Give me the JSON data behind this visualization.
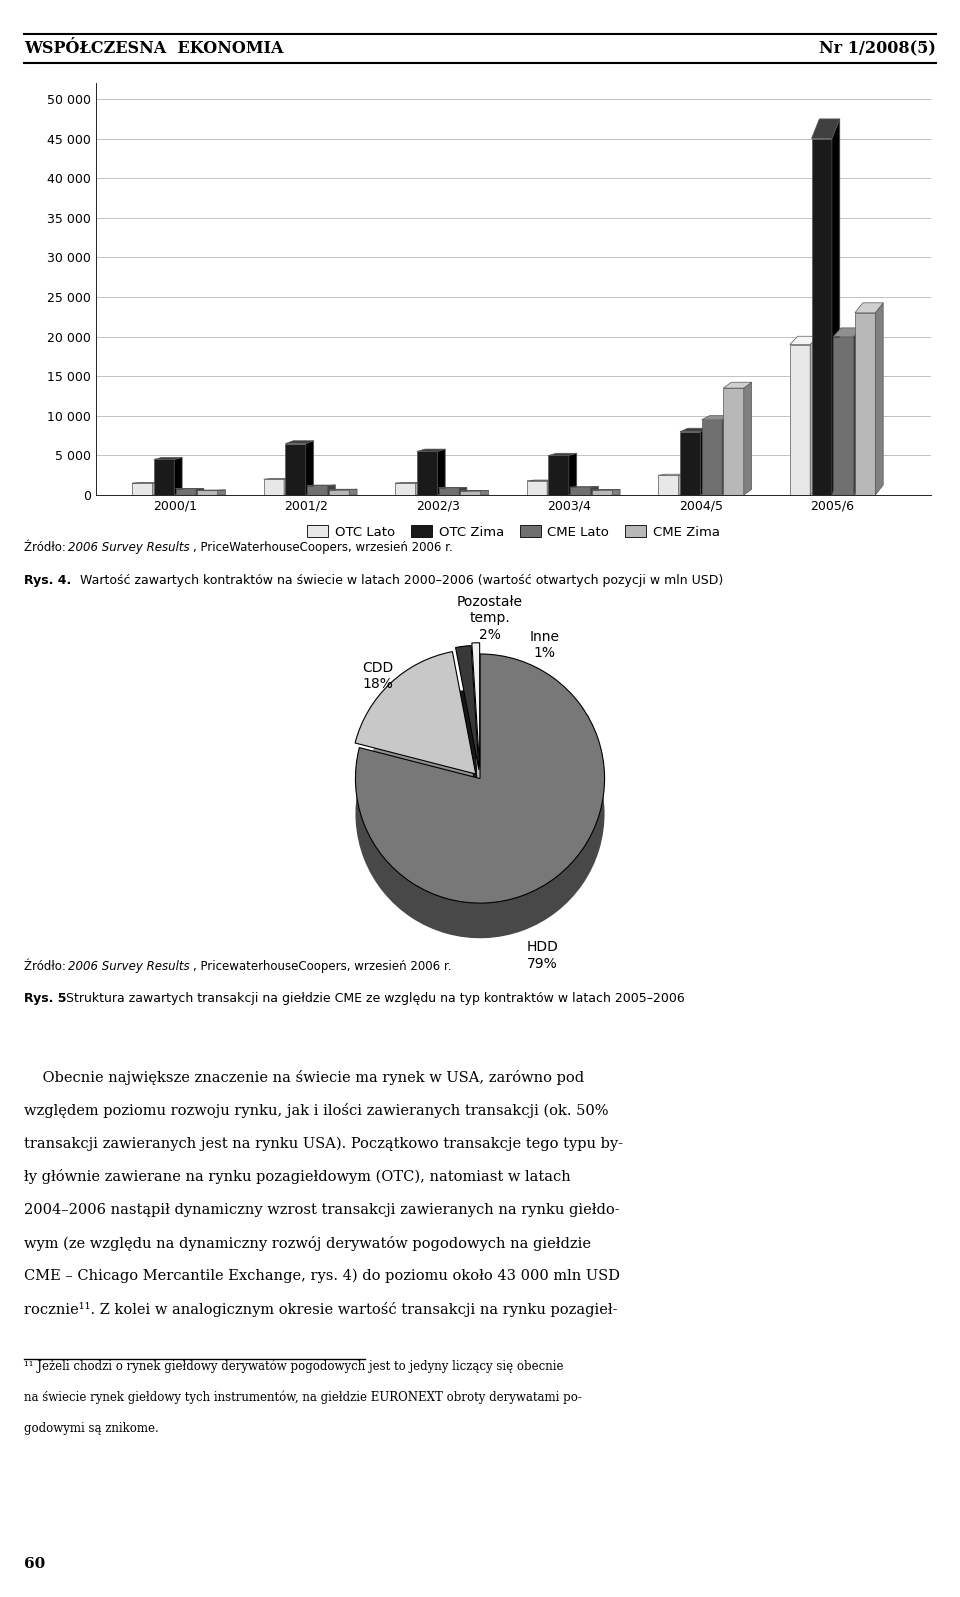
{
  "header_left": "WSPÓŁCZESNA  EKONOMIA",
  "header_right": "Nr 1/2008(5)",
  "bar_years": [
    "2000/1",
    "2001/2",
    "2002/3",
    "2003/4",
    "2004/5",
    "2005/6"
  ],
  "bar_series_names": [
    "OTC Lato",
    "OTC Zima",
    "CME Lato",
    "CME Zima"
  ],
  "bar_values": [
    [
      1500,
      4500,
      800,
      600
    ],
    [
      2000,
      6500,
      1200,
      700
    ],
    [
      1500,
      5500,
      900,
      550
    ],
    [
      1800,
      5000,
      1000,
      650
    ],
    [
      2500,
      8000,
      9500,
      13500
    ],
    [
      19000,
      45000,
      20000,
      23000
    ]
  ],
  "bar_front_colors": [
    "#e8e8e8",
    "#1a1a1a",
    "#707070",
    "#b8b8b8"
  ],
  "bar_side_colors": [
    "#b0b0b0",
    "#000000",
    "#404040",
    "#808080"
  ],
  "bar_top_colors": [
    "#f5f5f5",
    "#404040",
    "#909090",
    "#d0d0d0"
  ],
  "bar_ylim": [
    0,
    52000
  ],
  "bar_yticks": [
    0,
    5000,
    10000,
    15000,
    20000,
    25000,
    30000,
    35000,
    40000,
    45000,
    50000
  ],
  "bar_ytick_labels": [
    "0",
    "5 000",
    "10 000",
    "15 000",
    "20 000",
    "25 000",
    "30 000",
    "35 000",
    "40 000",
    "45 000",
    "50 000"
  ],
  "legend_labels": [
    "OTC Lato",
    "OTC Zima",
    "CME Lato",
    "CME Zima"
  ],
  "legend_face_colors": [
    "#e8e8e8",
    "#1a1a1a",
    "#707070",
    "#b8b8b8"
  ],
  "source_bar": "Źródło: 2006 Survey Results, PriceWaterhouseCoopers, wrzesień 2006 r.",
  "rys4_bold": "Rys. 4.",
  "rys4_rest": " Wartość zawartych kontraktów na świecie w latach 2000–2006 (wartość otwartych pozycji w mln USD)",
  "pie_values": [
    79,
    18,
    2,
    1
  ],
  "pie_colors": [
    "#787878",
    "#c8c8c8",
    "#383838",
    "#f0f0f0"
  ],
  "pie_depth_colors": [
    "#484848",
    "#909090",
    "#181818",
    "#c0c0c0"
  ],
  "source_pie": "Źródło: 2006 Survey Results, PricewaterhouseCoopers, wrzesień 2006 r.",
  "rys5_bold": "Rys. 5",
  "rys5_rest": " Struktura zawartych transakcji na giełdzie CME ze względu na typ kontraktów w latach 2005–2006",
  "body_lines": [
    "    Obecnie największe znaczenie na świecie ma rynek w USA, zarówno pod",
    "względem poziomu rozwoju rynku, jak i ilości zawieranych transakcji (ok. 50%",
    "transakcji zawieranych jest na rynku USA). Początkowo transakcje tego typu by-",
    "ły głównie zawierane na rynku pozagiełdowym (OTC), natomiast w latach",
    "2004–2006 nastąpił dynamiczny wzrost transakcji zawieranych na rynku giełdo-",
    "wym (ze względu na dynamiczny rozwój derywatów pogodowych na giełdzie",
    "CME – Chicago Mercantile Exchange, rys. 4) do poziomu około 43 000 mln USD",
    "rocznie¹¹. Z kolei w analogicznym okresie wartość transakcji na rynku pozagieł-"
  ],
  "footnote_lines": [
    "¹¹ Jeżeli chodzi o rynek giełdowy derywatów pogodowych jest to jedyny liczący się obecnie",
    "na świecie rynek giełdowy tych instrumentów, na giełdzie EURONEXT obroty derywatami po-",
    "godowymi są znikome."
  ],
  "page_number": "60"
}
